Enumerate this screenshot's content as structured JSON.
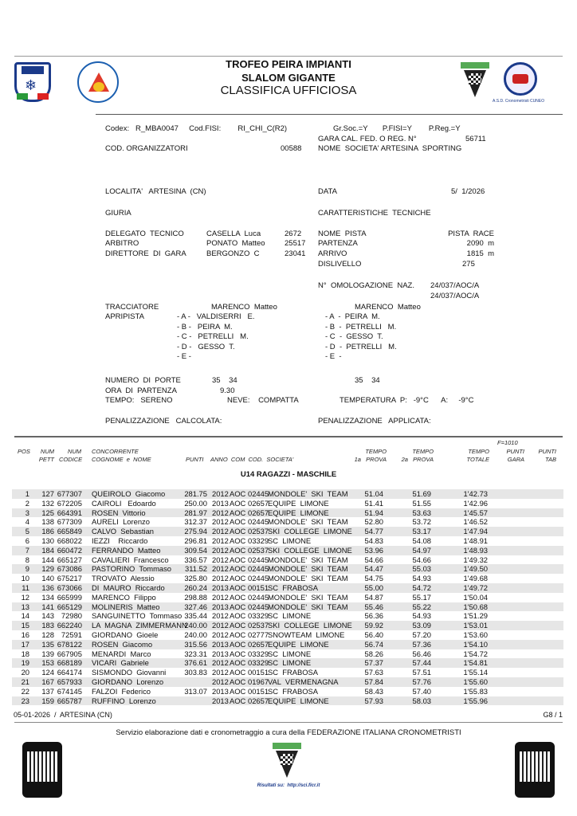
{
  "header": {
    "title1": "TROFEO PEIRA IMPIANTI",
    "title2": "SLALOM GIGANTE",
    "title3": "CLASSIFICA UFFICIOSA",
    "logo_right_caption": "A.S.D. Cronometristi CUNEO",
    "logo_center_text": "FICr"
  },
  "info": {
    "codex": "Codex:   R_MBA0047     Cod.FISI:        RI_CHI_C(R2)",
    "gr_soc": "Gr.Soc.=Y       P.FISI=Y        P.Reg.=Y",
    "gara_cal": "GARA CAL. FED. O REG. N°",
    "gara_num": "56711",
    "cod_org": "COD. ORGANIZZATORI",
    "cod_org_val": "00588",
    "nome_soc": "NOME  SOCIETA' ARTESINA  SPORTING",
    "localita": "LOCALITA'   ARTESINA  (CN)",
    "data_label": "DATA",
    "data_val": "5/  1/2026",
    "giuria": "GIURIA",
    "caratteristiche": "CARATTERISTICHE  TECNICHE",
    "jury": [
      {
        "role": "DELEGATO  TECNICO",
        "name": "CASELLA  Luca",
        "code": "2672"
      },
      {
        "role": "ARBITRO",
        "name": "PONATO  Matteo",
        "code": "25517"
      },
      {
        "role": "DIRETTORE  DI  GARA",
        "name": "BERGONZO  C",
        "code": "23041"
      }
    ],
    "tech": [
      {
        "label": "NOME  PISTA",
        "value": "PISTA  RACE"
      },
      {
        "label": "PARTENZA",
        "value": "2090  m"
      },
      {
        "label": "ARRIVO",
        "value": "1815  m"
      },
      {
        "label": "DISLIVELLO",
        "value": "275"
      }
    ],
    "omologazione": "N°  OMOLOGAZIONE  NAZ.",
    "omol1": "24/037/AOC/A",
    "omol2": "24/037/AOC/A",
    "tracciatore": "TRACCIATORE",
    "tracc1": "MARENCO  Matteo",
    "tracc2": "MARENCO  Matteo",
    "apripista": "APRIPISTA",
    "apri1": [
      "- A -   VALDISERRI   E.",
      "- B -   PEIRA  M.",
      "- C -   PETRELLI   M.",
      "- D -   GESSO  T.",
      "- E -"
    ],
    "apri2": [
      "- A  -  PEIRA  M.",
      "- B  -  PETRELLI   M.",
      "- C  -  GESSO  T.",
      "- D  -  PETRELLI   M.",
      "- E  -"
    ],
    "porte": "NUMERO  DI  PORTE",
    "porte1": "35    34",
    "porte2": "35    34",
    "ora": "ORA  DI  PARTENZA",
    "ora_val": "9.30",
    "tempo": "TEMPO:   SERENO",
    "neve": "NEVE:    COMPATTA",
    "temperatura": "TEMPERATURA  P:   -9°C      A:     -9°C",
    "pen_calc": "PENALIZZAZIONE   CALCOLATA:",
    "pen_appl": "PENALIZZAZIONE   APPLICATA:"
  },
  "table": {
    "headers": {
      "pos": "POS",
      "num_pett": "NUM\nPETT",
      "num_codice": "NUM\nCODICE",
      "concorrente": "CONCORRENTE\nCOGNOME  e  NOME",
      "punti": "PUNTI",
      "anno_com": "ANNO  COM  COD.  SOCIETA'",
      "t1": "TEMPO\n1a   PROVA",
      "t2": "TEMPO\n2a   PROVA",
      "tot": "TEMPO\nTOTALE",
      "f": "F=1010",
      "gara": "PUNTI\nGARA",
      "tab": "PUNTI\nTAB"
    },
    "category": "U14 RAGAZZI - MASCHILE",
    "rows": [
      [
        "1",
        "127",
        "677307",
        "QUEIROLO  Giacomo",
        "281.75",
        "2012",
        "AOC",
        "02445",
        "MONDOLE'  SKI  TEAM",
        "51.04",
        "51.69",
        "1'42.73"
      ],
      [
        "2",
        "132",
        "672205",
        "CAIROLI   Edoardo",
        "250.00",
        "2013",
        "AOC",
        "02657",
        "EQUIPE  LIMONE",
        "51.41",
        "51.55",
        "1'42.96"
      ],
      [
        "3",
        "125",
        "664391",
        "ROSEN  Vittorio",
        "281.97",
        "2012",
        "AOC",
        "02657",
        "EQUIPE  LIMONE",
        "51.94",
        "53.63",
        "1'45.57"
      ],
      [
        "4",
        "138",
        "677309",
        "AURELI  Lorenzo",
        "312.37",
        "2012",
        "AOC",
        "02445",
        "MONDOLE'  SKI  TEAM",
        "52.80",
        "53.72",
        "1'46.52"
      ],
      [
        "5",
        "186",
        "665849",
        "CALVO  Sebastian",
        "275.94",
        "2012",
        "AOC",
        "02537",
        "SKI  COLLEGE  LIMONE",
        "54.77",
        "53.17",
        "1'47.94"
      ],
      [
        "6",
        "130",
        "668022",
        "IEZZI    Riccardo",
        "296.81",
        "2012",
        "AOC",
        "03329",
        "SC  LIMONE",
        "54.83",
        "54.08",
        "1'48.91"
      ],
      [
        "7",
        "184",
        "660472",
        "FERRANDO  Matteo",
        "309.54",
        "2012",
        "AOC",
        "02537",
        "SKI  COLLEGE  LIMONE",
        "53.96",
        "54.97",
        "1'48.93"
      ],
      [
        "8",
        "144",
        "665127",
        "CAVALIERI  Francesco",
        "336.57",
        "2012",
        "AOC",
        "02445",
        "MONDOLE'  SKI  TEAM",
        "54.66",
        "54.66",
        "1'49.32"
      ],
      [
        "9",
        "129",
        "673086",
        "PASTORINO  Tommaso",
        "311.52",
        "2012",
        "AOC",
        "02445",
        "MONDOLE'  SKI  TEAM",
        "54.47",
        "55.03",
        "1'49.50"
      ],
      [
        "10",
        "140",
        "675217",
        "TROVATO  Alessio",
        "325.80",
        "2012",
        "AOC",
        "02445",
        "MONDOLE'  SKI  TEAM",
        "54.75",
        "54.93",
        "1'49.68"
      ],
      [
        "11",
        "136",
        "673066",
        "DI  MAURO  Riccardo",
        "260.24",
        "2013",
        "AOC",
        "00151",
        "SC  FRABOSA",
        "55.00",
        "54.72",
        "1'49.72"
      ],
      [
        "12",
        "134",
        "665999",
        "MARENCO  Filippo",
        "298.88",
        "2012",
        "AOC",
        "02445",
        "MONDOLE'  SKI  TEAM",
        "54.87",
        "55.17",
        "1'50.04"
      ],
      [
        "13",
        "141",
        "665129",
        "MOLINERIS  Matteo",
        "327.46",
        "2013",
        "AOC",
        "02445",
        "MONDOLE'  SKI  TEAM",
        "55.46",
        "55.22",
        "1'50.68"
      ],
      [
        "14",
        "143",
        "72980",
        "SANGUINETTO  Tommaso",
        "335.44",
        "2012",
        "AOC",
        "03329",
        "SC  LIMONE",
        "56.36",
        "54.93",
        "1'51.29"
      ],
      [
        "15",
        "183",
        "662240",
        "LA  MAGNA  ZIMMERMANN",
        "240.00",
        "2012",
        "AOC",
        "02537",
        "SKI  COLLEGE  LIMONE",
        "59.92",
        "53.09",
        "1'53.01"
      ],
      [
        "16",
        "128",
        "72591",
        "GIORDANO  Gioele",
        "240.00",
        "2012",
        "AOC",
        "02777",
        "SNOWTEAM  LIMONE",
        "56.40",
        "57.20",
        "1'53.60"
      ],
      [
        "17",
        "135",
        "678122",
        "ROSEN  Giacomo",
        "315.56",
        "2013",
        "AOC",
        "02657",
        "EQUIPE  LIMONE",
        "56.74",
        "57.36",
        "1'54.10"
      ],
      [
        "18",
        "139",
        "667905",
        "MENARDI  Marco",
        "323.31",
        "2013",
        "AOC",
        "03329",
        "SC  LIMONE",
        "58.26",
        "56.46",
        "1'54.72"
      ],
      [
        "19",
        "153",
        "668189",
        "VICARI  Gabriele",
        "376.61",
        "2012",
        "AOC",
        "03329",
        "SC  LIMONE",
        "57.37",
        "57.44",
        "1'54.81"
      ],
      [
        "20",
        "124",
        "664174",
        "SISMONDO  Giovanni",
        "303.83",
        "2012",
        "AOC",
        "00151",
        "SC  FRABOSA",
        "57.63",
        "57.51",
        "1'55.14"
      ],
      [
        "21",
        "167",
        "657933",
        "GIORDANO  Lorenzo",
        "",
        "2012",
        "AOC",
        "01967",
        "VAL  VERMENAGNA",
        "57.84",
        "57.76",
        "1'55.60"
      ],
      [
        "22",
        "137",
        "674145",
        "FALZOI  Federico",
        "313.07",
        "2013",
        "AOC",
        "00151",
        "SC  FRABOSA",
        "58.43",
        "57.40",
        "1'55.83"
      ],
      [
        "23",
        "159",
        "665787",
        "RUFFINO  Lorenzo",
        "",
        "2013",
        "AOC",
        "02657",
        "EQUIPE  LIMONE",
        "57.93",
        "58.03",
        "1'55.96"
      ]
    ]
  },
  "footer": {
    "left": "05-01-2026  /  ARTESINA (CN)",
    "right": "G8 / 1",
    "service": "Servizio elaborazione dati e cronometraggio a cura della FEDERAZIONE ITALIANA CRONOMETRISTI",
    "results": "Risultati su:  http://sci.ficr.it"
  }
}
